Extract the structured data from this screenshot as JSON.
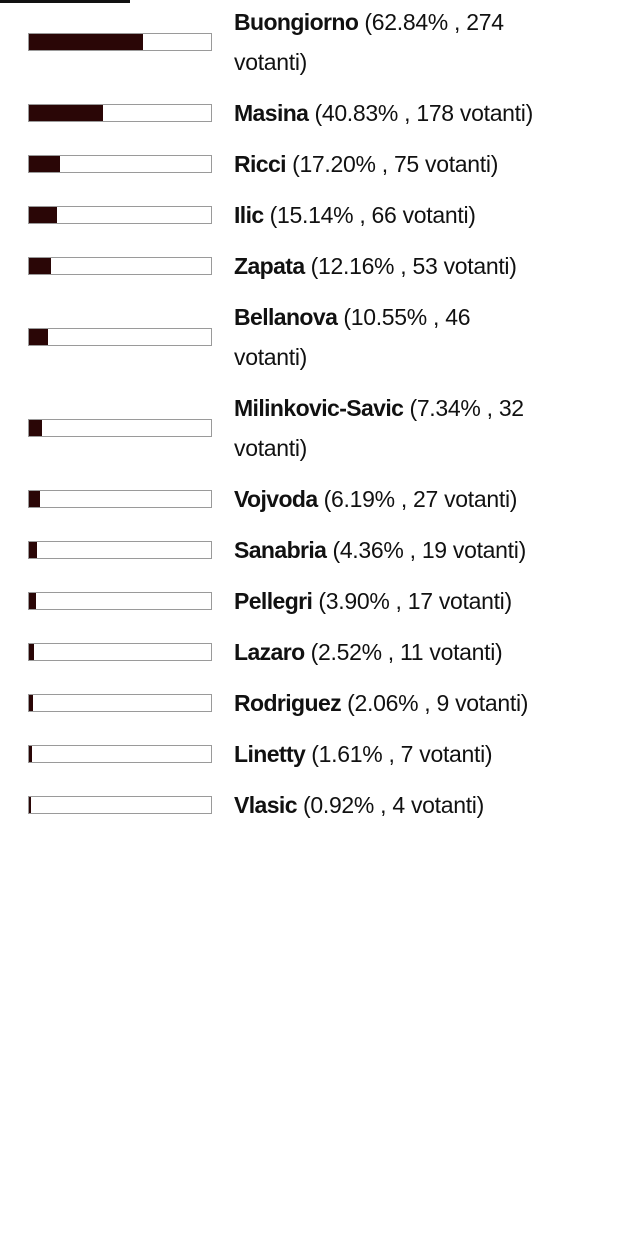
{
  "accent_color": "#2a0606",
  "votes_label": "votanti",
  "candidates": [
    {
      "name": "Buongiorno",
      "percent": 62.84,
      "percent_text": "62.84%",
      "votes": 274
    },
    {
      "name": "Masina",
      "percent": 40.83,
      "percent_text": "40.83%",
      "votes": 178
    },
    {
      "name": "Ricci",
      "percent": 17.2,
      "percent_text": "17.20%",
      "votes": 75
    },
    {
      "name": "Ilic",
      "percent": 15.14,
      "percent_text": "15.14%",
      "votes": 66
    },
    {
      "name": "Zapata",
      "percent": 12.16,
      "percent_text": "12.16%",
      "votes": 53
    },
    {
      "name": "Bellanova",
      "percent": 10.55,
      "percent_text": "10.55%",
      "votes": 46
    },
    {
      "name": "Milinkovic-Savic",
      "percent": 7.34,
      "percent_text": "7.34%",
      "votes": 32
    },
    {
      "name": "Vojvoda",
      "percent": 6.19,
      "percent_text": "6.19%",
      "votes": 27
    },
    {
      "name": "Sanabria",
      "percent": 4.36,
      "percent_text": "4.36%",
      "votes": 19
    },
    {
      "name": "Pellegri",
      "percent": 3.9,
      "percent_text": "3.90%",
      "votes": 17
    },
    {
      "name": "Lazaro",
      "percent": 2.52,
      "percent_text": "2.52%",
      "votes": 11
    },
    {
      "name": "Rodriguez",
      "percent": 2.06,
      "percent_text": "2.06%",
      "votes": 9
    },
    {
      "name": "Linetty",
      "percent": 1.61,
      "percent_text": "1.61%",
      "votes": 7
    },
    {
      "name": "Vlasic",
      "percent": 0.92,
      "percent_text": "0.92%",
      "votes": 4
    }
  ]
}
